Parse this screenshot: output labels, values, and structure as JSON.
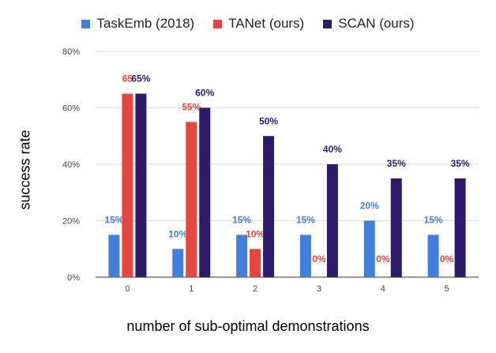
{
  "chart_data": {
    "type": "bar",
    "categories": [
      "0",
      "1",
      "2",
      "3",
      "4",
      "5"
    ],
    "series": [
      {
        "name": "TaskEmb (2018)",
        "color": "#3f7fde",
        "values": [
          15,
          10,
          15,
          15,
          20,
          15
        ],
        "labels": [
          "15%",
          "10%",
          "15%",
          "15%",
          "20%",
          "15%"
        ]
      },
      {
        "name": "TANet (ours)",
        "color": "#e8453c",
        "values": [
          65,
          55,
          10,
          0,
          0,
          0
        ],
        "labels": [
          "65",
          "55%",
          "10%",
          "0%",
          "0%",
          "0%"
        ]
      },
      {
        "name": "SCAN (ours)",
        "color": "#2d1a6b",
        "values": [
          65,
          60,
          50,
          40,
          35,
          35
        ],
        "labels": [
          "65%",
          "60%",
          "50%",
          "40%",
          "35%",
          "35%"
        ]
      }
    ],
    "yticks": [
      "0%",
      "20%",
      "40%",
      "60%",
      "80%"
    ],
    "ylim": [
      0,
      80
    ],
    "xlabel": "number of sub-optimal demonstrations",
    "ylabel": "success rate",
    "title": "",
    "grid": true,
    "legend": "top-center"
  }
}
